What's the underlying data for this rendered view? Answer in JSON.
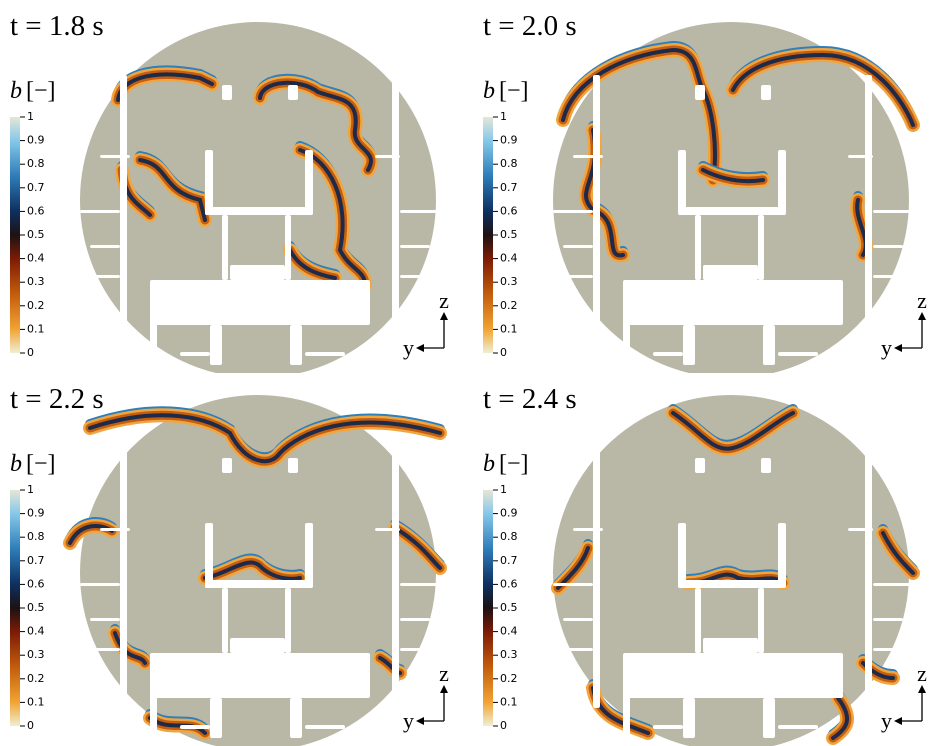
{
  "panels": [
    {
      "title": "t = 1.8 s",
      "colorbar": {
        "symbol": "b",
        "unit": "[−]",
        "ticks": [
          "1",
          "0.9",
          "0.8",
          "0.7",
          "0.6",
          "0.5",
          "0.4",
          "0.3",
          "0.2",
          "0.1",
          "0"
        ]
      },
      "axes": {
        "vertical": "z",
        "horizontal": "y"
      }
    },
    {
      "title": "t = 2.0 s",
      "colorbar": {
        "symbol": "b",
        "unit": "[−]",
        "ticks": [
          "1",
          "0.9",
          "0.8",
          "0.7",
          "0.6",
          "0.5",
          "0.4",
          "0.3",
          "0.2",
          "0.1",
          "0"
        ]
      },
      "axes": {
        "vertical": "z",
        "horizontal": "y"
      }
    },
    {
      "title": "t = 2.2 s",
      "colorbar": {
        "symbol": "b",
        "unit": "[−]",
        "ticks": [
          "1",
          "0.9",
          "0.8",
          "0.7",
          "0.6",
          "0.5",
          "0.4",
          "0.3",
          "0.2",
          "0.1",
          "0"
        ]
      },
      "axes": {
        "vertical": "z",
        "horizontal": "y"
      }
    },
    {
      "title": "t = 2.4 s",
      "colorbar": {
        "symbol": "b",
        "unit": "[−]",
        "ticks": [
          "1",
          "0.9",
          "0.8",
          "0.7",
          "0.6",
          "0.5",
          "0.4",
          "0.3",
          "0.2",
          "0.1",
          "0"
        ]
      },
      "axes": {
        "vertical": "z",
        "horizontal": "y"
      }
    }
  ]
}
